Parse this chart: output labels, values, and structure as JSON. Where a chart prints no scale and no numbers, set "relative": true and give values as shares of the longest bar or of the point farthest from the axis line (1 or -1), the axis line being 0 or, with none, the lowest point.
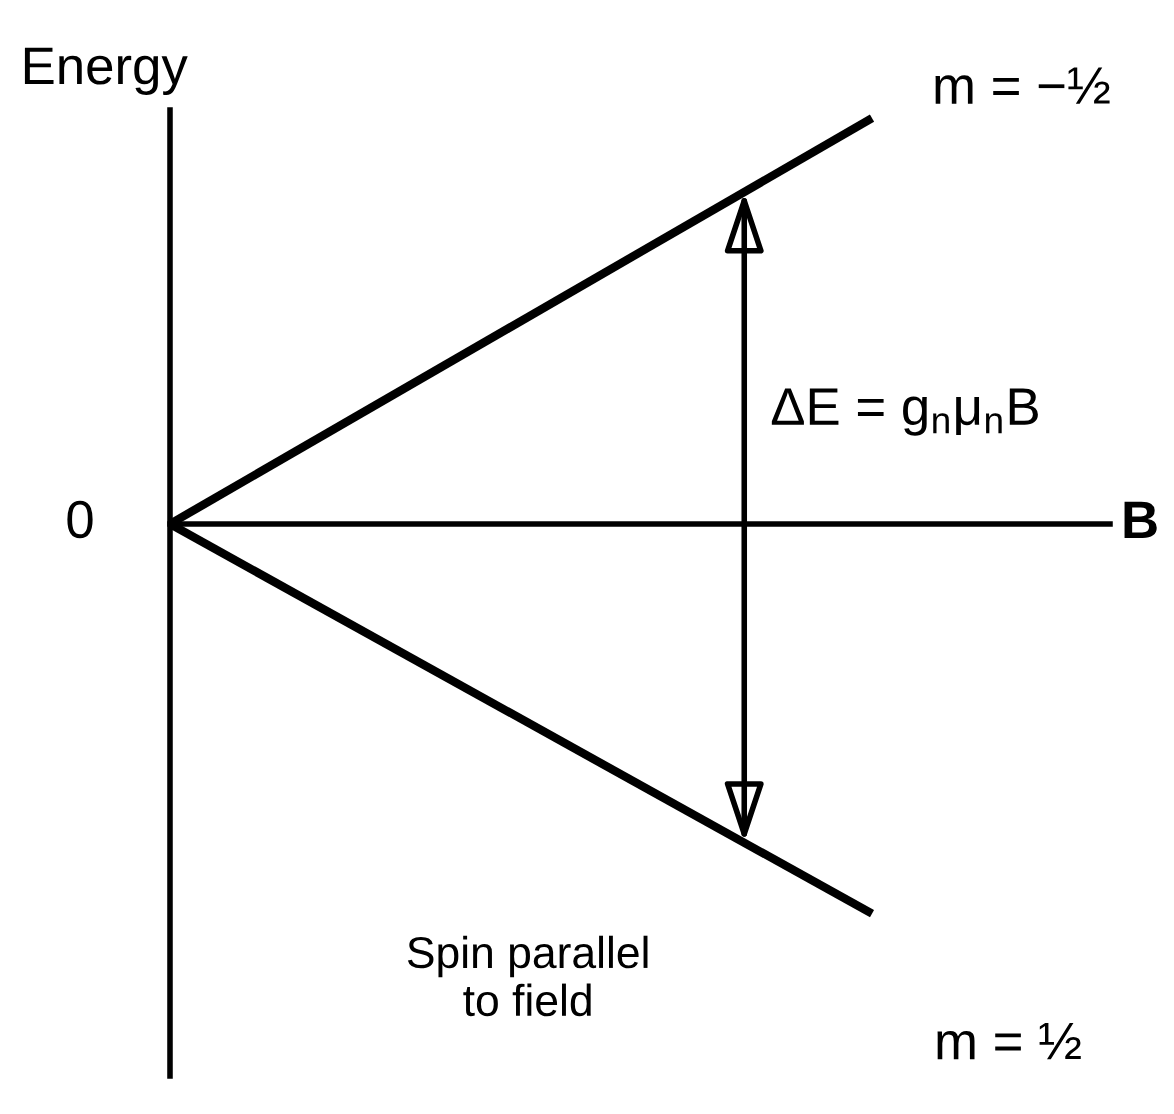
{
  "chart_data": {
    "type": "line",
    "xlabel": "B",
    "ylabel": "Energy",
    "categories": [
      null,
      null
    ],
    "relative": true,
    "series": [
      {
        "name": "m = −½",
        "color": "#000000",
        "values": [
          0,
          1
        ]
      },
      {
        "name": "m = ½",
        "color": "#000000",
        "values": [
          0,
          -0.96
        ]
      }
    ],
    "annotations": [
      "0",
      "ΔE = g$_{n}$μ$_{n}$B",
      "Spin parallel\nto field"
    ]
  }
}
